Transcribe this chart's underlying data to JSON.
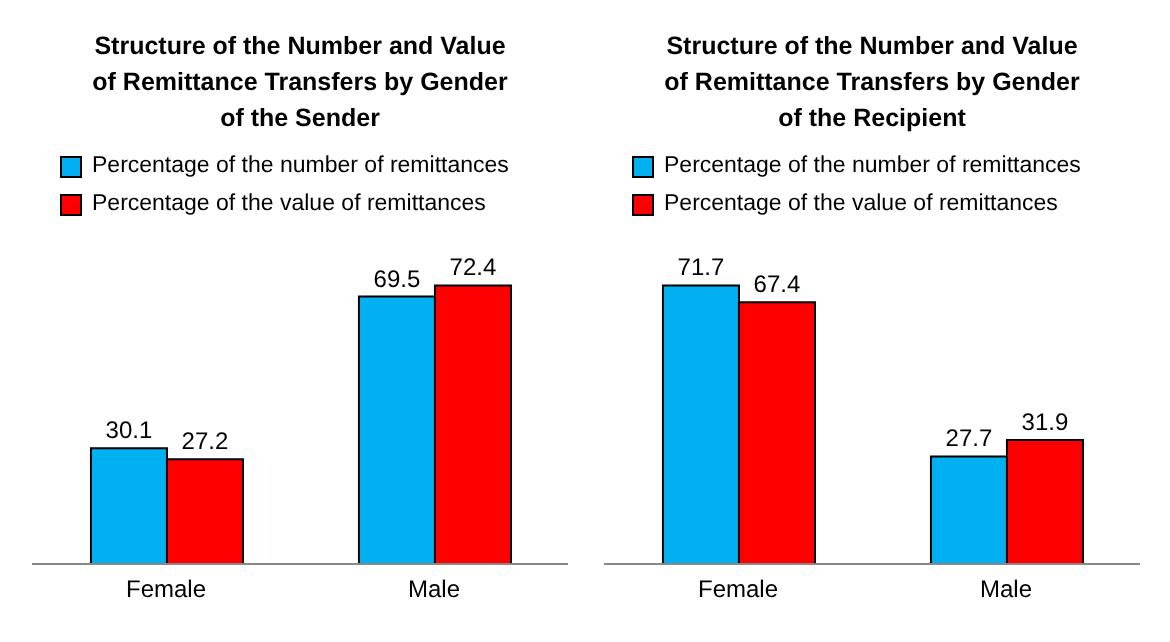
{
  "chart_data": [
    {
      "type": "bar",
      "title": "Structure of the Number and Value of Remittance Transfers by Gender of the Sender",
      "categories": [
        "Female",
        "Male"
      ],
      "series": [
        {
          "name": "Percentage of the number of remittances",
          "color": "#00b0f0",
          "values": [
            30.1,
            69.5
          ]
        },
        {
          "name": "Percentage of the value of remittances",
          "color": "#ff0000",
          "values": [
            27.2,
            72.4
          ]
        }
      ],
      "data_labels": true,
      "legend": "top left"
    },
    {
      "type": "bar",
      "title": "Structure of the Number and Value of Remittance Transfers by Gender of the Recipient",
      "categories": [
        "Female",
        "Male"
      ],
      "series": [
        {
          "name": "Percentage of the number of remittances",
          "color": "#00b0f0",
          "values": [
            71.7,
            27.7
          ]
        },
        {
          "name": "Percentage of the value of remittances",
          "color": "#ff0000",
          "values": [
            67.4,
            31.9
          ]
        }
      ],
      "data_labels": true,
      "legend": "top left"
    }
  ]
}
